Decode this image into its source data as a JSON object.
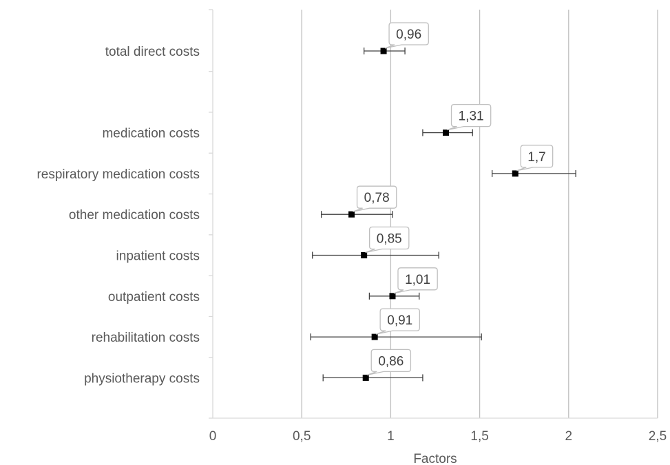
{
  "chart_data": {
    "type": "scatter",
    "subtype": "forest-plot",
    "title": "",
    "xlabel": "Factors",
    "ylabel": "",
    "xlim": [
      0,
      2.5
    ],
    "x_ticks": [
      0,
      0.5,
      1,
      1.5,
      2,
      2.5
    ],
    "x_tick_labels": [
      "0",
      "0,5",
      "1",
      "1,5",
      "2",
      "2,5"
    ],
    "grid": "vertical",
    "legend": "none",
    "marker_color": "#000000",
    "categories": [
      "total direct costs",
      "",
      "medication costs",
      "respiratory medication costs",
      "other medication costs",
      "inpatient costs",
      "outpatient costs",
      "rehabilitation costs",
      "physiotherapy costs"
    ],
    "points": [
      {
        "category": "total direct costs",
        "value": 0.96,
        "ci_low": 0.85,
        "ci_high": 1.08,
        "label": "0,96"
      },
      {
        "category": "medication costs",
        "value": 1.31,
        "ci_low": 1.18,
        "ci_high": 1.46,
        "label": "1,31"
      },
      {
        "category": "respiratory medication costs",
        "value": 1.7,
        "ci_low": 1.57,
        "ci_high": 2.04,
        "label": "1,7"
      },
      {
        "category": "other medication costs",
        "value": 0.78,
        "ci_low": 0.61,
        "ci_high": 1.01,
        "label": "0,78"
      },
      {
        "category": "inpatient costs",
        "value": 0.85,
        "ci_low": 0.56,
        "ci_high": 1.27,
        "label": "0,85"
      },
      {
        "category": "outpatient costs",
        "value": 1.01,
        "ci_low": 0.88,
        "ci_high": 1.16,
        "label": "1,01"
      },
      {
        "category": "rehabilitation costs",
        "value": 0.91,
        "ci_low": 0.55,
        "ci_high": 1.51,
        "label": "0,91"
      },
      {
        "category": "physiotherapy costs",
        "value": 0.86,
        "ci_low": 0.62,
        "ci_high": 1.18,
        "label": "0,86"
      }
    ]
  }
}
